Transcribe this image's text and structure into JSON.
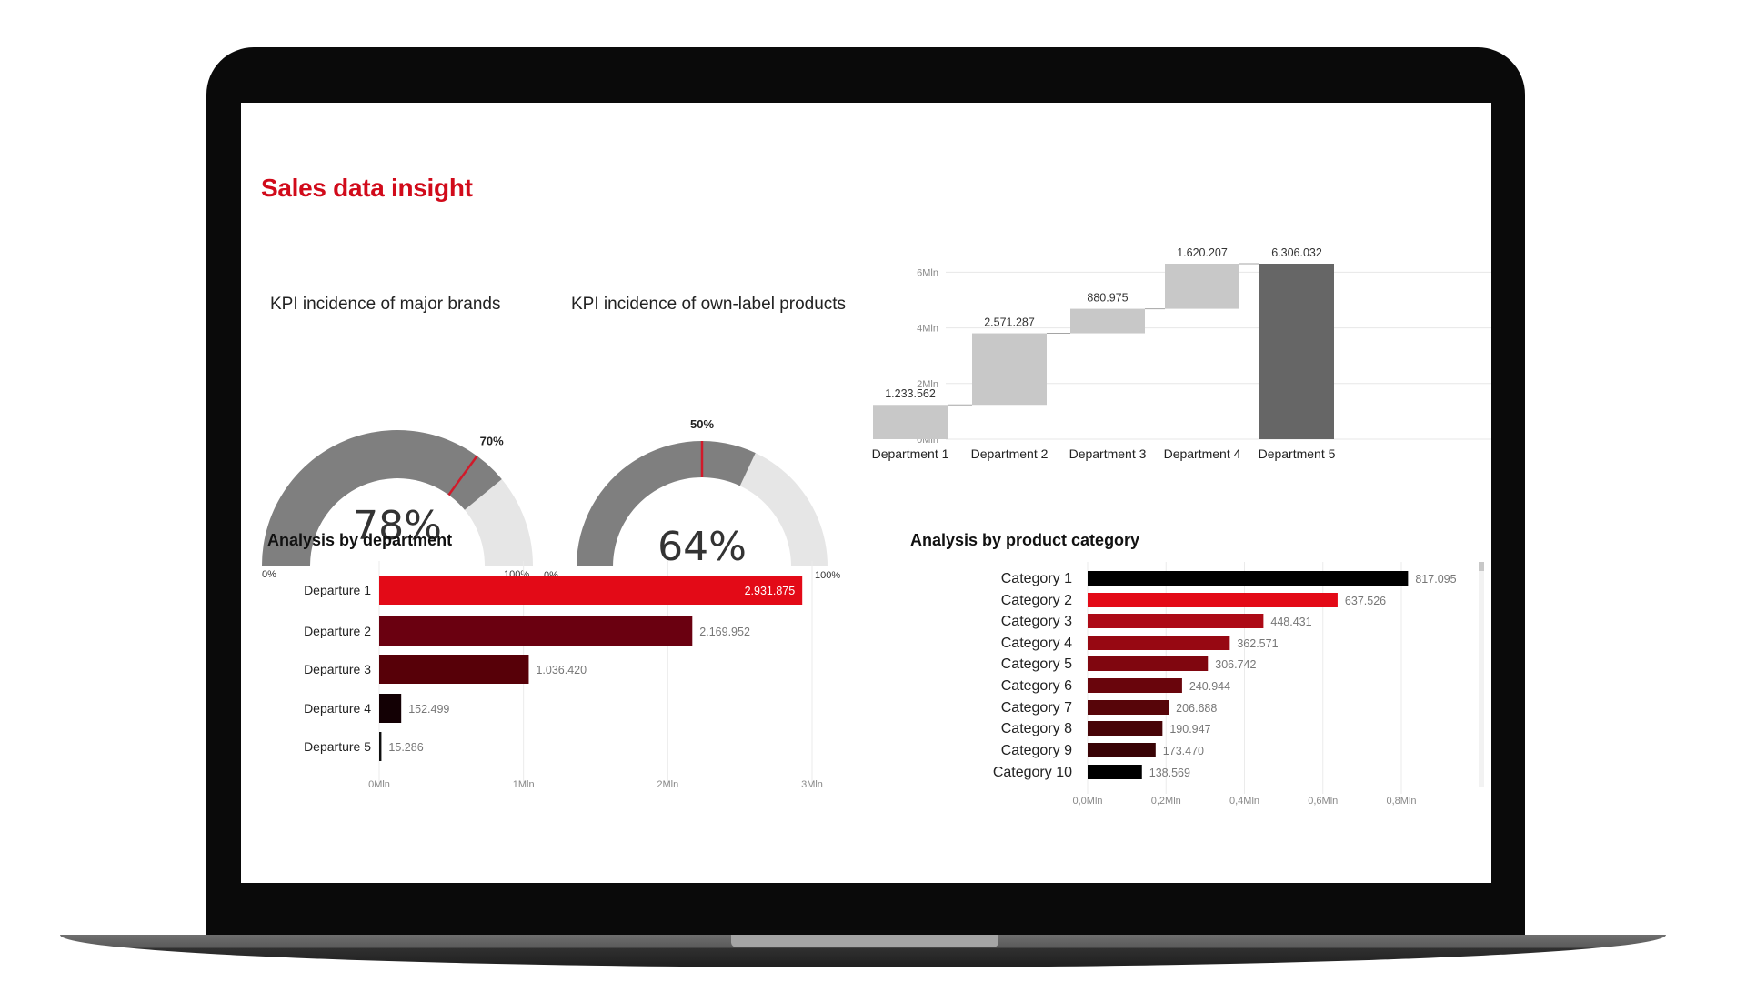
{
  "page": {
    "title": "Sales data insight"
  },
  "gauges": [
    {
      "title": "KPI incidence of major brands",
      "value": 78,
      "value_label": "78%",
      "target": 70,
      "target_label": "70%",
      "min_label": "0%",
      "max_label": "100%"
    },
    {
      "title": "KPI incidence of own-label products",
      "value": 64,
      "value_label": "64%",
      "target": 50,
      "target_label": "50%",
      "min_label": "0%",
      "max_label": "100%"
    }
  ],
  "colors": {
    "title_red": "#d10a1a",
    "gauge_fill": "#7f7f7f",
    "gauge_bg": "#e6e6e6",
    "target_line": "#d11a2a",
    "waterfall_step": "#c8c8c8",
    "waterfall_total": "#666666"
  },
  "chart_data": [
    {
      "type": "bar",
      "subtype": "waterfall",
      "title": "",
      "categories": [
        "Department 1",
        "Department 2",
        "Department 3",
        "Department 4",
        "Department 5"
      ],
      "values": [
        1233562,
        2571287,
        880975,
        1620207,
        6306032
      ],
      "value_labels": [
        "1.233.562",
        "2.571.287",
        "880.975",
        "1.620.207",
        "6.306.032"
      ],
      "total_index": 4,
      "y_ticks": [
        0,
        2000000,
        4000000,
        6000000
      ],
      "y_tick_labels": [
        "0Mln",
        "2Mln",
        "4Mln",
        "6Mln"
      ],
      "ylim": [
        0,
        6306032
      ],
      "grid": true
    },
    {
      "type": "bar",
      "orientation": "horizontal",
      "title": "Analysis by department",
      "categories": [
        "Departure 1",
        "Departure 2",
        "Departure  3",
        "Departure  4",
        "Departure  5"
      ],
      "values": [
        2931875,
        2169952,
        1036420,
        152499,
        15286
      ],
      "value_labels": [
        "2.931.875",
        "2.169.952",
        "1.036.420",
        "152.499",
        "15.286"
      ],
      "colors": [
        "#e30a17",
        "#6a0010",
        "#570008",
        "#130004",
        "#0f0f0f"
      ],
      "x_ticks": [
        0,
        1000000,
        2000000,
        3000000
      ],
      "x_tick_labels": [
        "0Mln",
        "1Mln",
        "2Mln",
        "3Mln"
      ],
      "xlim": [
        0,
        3000000
      ],
      "grid": true
    },
    {
      "type": "bar",
      "orientation": "horizontal",
      "title": "Analysis by product category",
      "categories": [
        "Category 1",
        "Category 2",
        "Category 3",
        "Category 4",
        "Category 5",
        "Category 6",
        "Category 7",
        "Category 8",
        "Category 9",
        "Category 10"
      ],
      "values": [
        817095,
        637526,
        448431,
        362571,
        306742,
        240944,
        206688,
        190947,
        173470,
        138569
      ],
      "value_labels": [
        "817.095",
        "637.526",
        "448.431",
        "362.571",
        "306.742",
        "240.944",
        "206.688",
        "190.947",
        "173.470",
        "138.569"
      ],
      "colors": [
        "#000000",
        "#e30a17",
        "#ad0a16",
        "#970812",
        "#80060f",
        "#69050c",
        "#570509",
        "#470407",
        "#390305",
        "#000000"
      ],
      "x_ticks": [
        0,
        200000,
        400000,
        600000,
        800000
      ],
      "x_tick_labels": [
        "0,0Mln",
        "0,2Mln",
        "0,4Mln",
        "0,6Mln",
        "0,8Mln"
      ],
      "xlim": [
        0,
        800000
      ],
      "grid": true
    }
  ]
}
